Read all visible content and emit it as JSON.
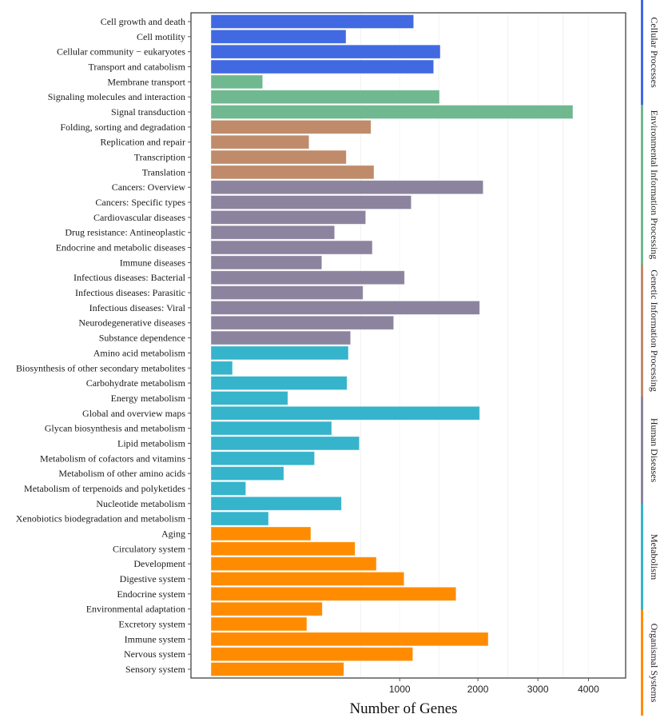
{
  "chart_data": {
    "type": "bar",
    "orientation": "horizontal",
    "xscale": "sqrt",
    "title": "",
    "xlabel": "Number of Genes",
    "ylabel": "",
    "xlim": [
      0,
      4500
    ],
    "xticks": [
      1000,
      2000,
      3000,
      4000
    ],
    "xtick_labels": [
      "1000",
      "2000",
      "3000",
      "4000"
    ],
    "grid": true,
    "legend": "right-strip",
    "groups": [
      {
        "name": "Cellular Processes",
        "color": "#4169E1"
      },
      {
        "name": "Environmental Information Processing",
        "color": "#6FB890"
      },
      {
        "name": "Genetic Information Processing",
        "color": "#C08B6A"
      },
      {
        "name": "Human Diseases",
        "color": "#8C849E"
      },
      {
        "name": "Metabolism",
        "color": "#35B4CC"
      },
      {
        "name": "Organismal Systems",
        "color": "#FF8C00"
      }
    ],
    "bars": [
      {
        "label": "Cell growth and death",
        "group": 0,
        "value": 1153
      },
      {
        "label": "Cell motility",
        "group": 0,
        "value": 512
      },
      {
        "label": "Cellular community − eukaryotes",
        "group": 0,
        "value": 1476
      },
      {
        "label": "Transport and catabolism",
        "group": 0,
        "value": 1392
      },
      {
        "label": "Membrane transport",
        "group": 1,
        "value": 75
      },
      {
        "label": "Signaling molecules and interaction",
        "group": 1,
        "value": 1466
      },
      {
        "label": "Signal transduction",
        "group": 1,
        "value": 3677
      },
      {
        "label": "Folding, sorting and degradation",
        "group": 2,
        "value": 719
      },
      {
        "label": "Replication and repair",
        "group": 2,
        "value": 270
      },
      {
        "label": "Transcription",
        "group": 2,
        "value": 514
      },
      {
        "label": "Translation",
        "group": 2,
        "value": 746
      },
      {
        "label": "Cancers: Overview",
        "group": 3,
        "value": 2080
      },
      {
        "label": "Cancers: Specific types",
        "group": 3,
        "value": 1126
      },
      {
        "label": "Cardiovascular diseases",
        "group": 3,
        "value": 672
      },
      {
        "label": "Drug resistance: Antineoplastic",
        "group": 3,
        "value": 429
      },
      {
        "label": "Endocrine and metabolic diseases",
        "group": 3,
        "value": 731
      },
      {
        "label": "Immune diseases",
        "group": 3,
        "value": 345
      },
      {
        "label": "Infectious diseases: Bacterial",
        "group": 3,
        "value": 1052
      },
      {
        "label": "Infectious diseases: Parasitic",
        "group": 3,
        "value": 649
      },
      {
        "label": "Infectious diseases: Viral",
        "group": 3,
        "value": 2027
      },
      {
        "label": "Neurodegenerative diseases",
        "group": 3,
        "value": 937
      },
      {
        "label": "Substance dependence",
        "group": 3,
        "value": 547
      },
      {
        "label": "Amino acid metabolism",
        "group": 4,
        "value": 530
      },
      {
        "label": "Biosynthesis of other secondary metabolites",
        "group": 4,
        "value": 13
      },
      {
        "label": "Carbohydrate metabolism",
        "group": 4,
        "value": 520
      },
      {
        "label": "Energy metabolism",
        "group": 4,
        "value": 166
      },
      {
        "label": "Global and overview maps",
        "group": 4,
        "value": 2027
      },
      {
        "label": "Glycan biosynthesis and metabolism",
        "group": 4,
        "value": 409
      },
      {
        "label": "Lipid metabolism",
        "group": 4,
        "value": 618
      },
      {
        "label": "Metabolism of cofactors and vitamins",
        "group": 4,
        "value": 301
      },
      {
        "label": "Metabolism of other amino acids",
        "group": 4,
        "value": 149
      },
      {
        "label": "Metabolism of terpenoids and polyketides",
        "group": 4,
        "value": 34
      },
      {
        "label": "Nucleotide metabolism",
        "group": 4,
        "value": 478
      },
      {
        "label": "Xenobiotics biodegradation and metabolism",
        "group": 4,
        "value": 93
      },
      {
        "label": "Aging",
        "group": 5,
        "value": 280
      },
      {
        "label": "Circulatory system",
        "group": 5,
        "value": 583
      },
      {
        "label": "Development",
        "group": 5,
        "value": 768
      },
      {
        "label": "Digestive system",
        "group": 5,
        "value": 1047
      },
      {
        "label": "Endocrine system",
        "group": 5,
        "value": 1686
      },
      {
        "label": "Environmental adaptation",
        "group": 5,
        "value": 348
      },
      {
        "label": "Excretory system",
        "group": 5,
        "value": 258
      },
      {
        "label": "Immune system",
        "group": 5,
        "value": 2158
      },
      {
        "label": "Nervous system",
        "group": 5,
        "value": 1144
      },
      {
        "label": "Sensory system",
        "group": 5,
        "value": 496
      }
    ]
  }
}
